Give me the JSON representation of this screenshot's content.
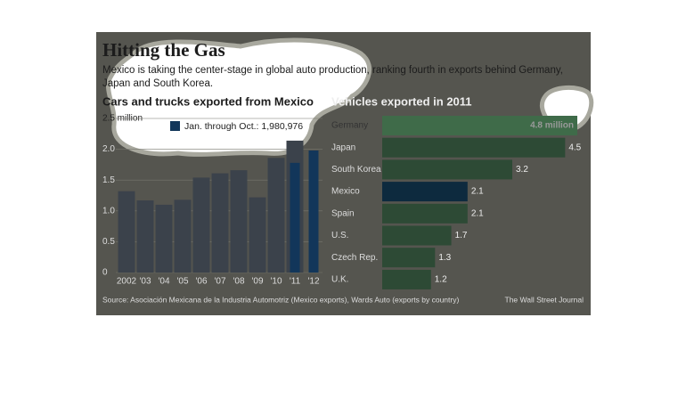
{
  "header": {
    "title": "Hitting the Gas",
    "subtitle": "Mexico is taking the center-stage in global auto production, ranking fourth in exports behind Germany, Japan and South Korea."
  },
  "chart_data": [
    {
      "type": "bar",
      "subtitle": "Cars and trucks exported from Mexico",
      "categories": [
        "2002",
        "'03",
        "'04",
        "'05",
        "'06",
        "'07",
        "'08",
        "'09",
        "'10",
        "'11",
        "'12"
      ],
      "series": [
        {
          "color": "#3b424b",
          "values": [
            1.32,
            1.17,
            1.1,
            1.18,
            1.54,
            1.61,
            1.66,
            1.22,
            1.86,
            2.14,
            null
          ]
        },
        {
          "name": "Jan. through Oct.: 1,980,976",
          "color": "#12365a",
          "values": [
            null,
            null,
            null,
            null,
            null,
            null,
            null,
            null,
            null,
            1.78,
            1.98
          ]
        }
      ],
      "ylim": [
        0,
        2.5
      ],
      "yticks": [
        0,
        0.5,
        {
          "value": 1,
          "label": "1.0"
        },
        1.5,
        {
          "value": 2,
          "label": "2.0"
        },
        {
          "value": 2.5,
          "label": "2.5 million"
        }
      ],
      "grid": true
    },
    {
      "type": "hbar",
      "subtitle": "Vehicles exported in 2011",
      "categories": [
        "Germany",
        "Japan",
        "South Korea",
        "Mexico",
        "Spain",
        "U.S.",
        "Czech Rep.",
        "U.K."
      ],
      "values": [
        4.8,
        4.5,
        3.2,
        2.1,
        2.1,
        1.7,
        1.3,
        1.2
      ],
      "value_labels": [
        "4.8 million",
        "4.5",
        "3.2",
        "2.1",
        "2.1",
        "1.7",
        "1.3",
        "1.2"
      ],
      "colors": [
        "#3f6b49",
        "#2d4a35",
        "#2d4a35",
        "#0d2a3e",
        "#2d4a35",
        "#2d4a35",
        "#2d4a35",
        "#2d4a35"
      ]
    }
  ],
  "footer": {
    "source": "Source:  Asociación Mexicana de la Industria Automotriz (Mexico exports), Wards Auto (exports by country)",
    "credit": "The Wall Street Journal"
  }
}
